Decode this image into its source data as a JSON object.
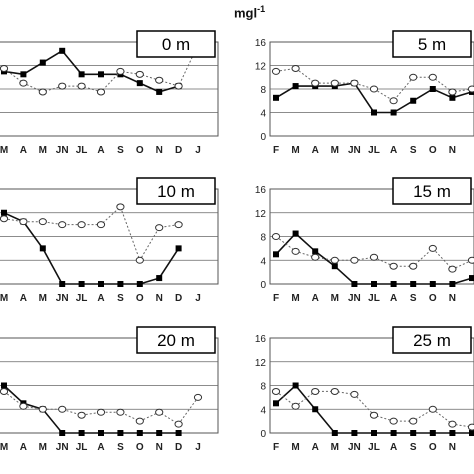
{
  "unit": {
    "base": "mgl",
    "exp": "-1"
  },
  "chart_data": [
    {
      "type": "line",
      "label": "0 m",
      "x": [
        "M",
        "A",
        "M",
        "JN",
        "JL",
        "A",
        "S",
        "O",
        "N",
        "D",
        "J"
      ],
      "yticks": [],
      "series": [
        {
          "marker": "filled-square",
          "line": "solid",
          "values": [
            11,
            10.5,
            12.5,
            14.5,
            10.5,
            10.5,
            10.5,
            9,
            7.5,
            8.5,
            null
          ]
        },
        {
          "marker": "open-circle",
          "line": "dotted",
          "values": [
            11.5,
            9,
            7.5,
            8.5,
            8.5,
            7.5,
            11,
            10.5,
            9.5,
            8.5,
            15.5
          ]
        }
      ]
    },
    {
      "type": "line",
      "label": "5 m",
      "x": [
        "F",
        "M",
        "A",
        "M",
        "JN",
        "JL",
        "A",
        "S",
        "O",
        "N",
        ""
      ],
      "yticks": [
        "16",
        "12",
        "8",
        "4",
        "0"
      ],
      "series": [
        {
          "marker": "filled-square",
          "line": "solid",
          "values": [
            6.5,
            8.5,
            8.5,
            8.5,
            9,
            4,
            4,
            6,
            8,
            6.5,
            7.5
          ]
        },
        {
          "marker": "open-circle",
          "line": "dotted",
          "values": [
            11,
            11.5,
            9,
            9,
            9,
            8,
            6,
            10,
            10,
            7.5,
            8
          ]
        }
      ]
    },
    {
      "type": "line",
      "label": "10 m",
      "x": [
        "M",
        "A",
        "M",
        "JN",
        "JL",
        "A",
        "S",
        "O",
        "N",
        "D",
        "J"
      ],
      "yticks": [],
      "series": [
        {
          "marker": "filled-square",
          "line": "solid",
          "values": [
            12,
            10.5,
            6,
            0,
            0,
            0,
            0,
            0,
            1,
            6,
            null
          ]
        },
        {
          "marker": "open-circle",
          "line": "dotted",
          "values": [
            11,
            10.5,
            10.5,
            10,
            10,
            10,
            13,
            4,
            9.5,
            10,
            null
          ]
        }
      ]
    },
    {
      "type": "line",
      "label": "15 m",
      "x": [
        "F",
        "M",
        "A",
        "M",
        "JN",
        "JL",
        "A",
        "S",
        "O",
        "N",
        ""
      ],
      "yticks": [
        "16",
        "12",
        "8",
        "4",
        "0"
      ],
      "series": [
        {
          "marker": "filled-square",
          "line": "solid",
          "values": [
            5,
            8.5,
            5.5,
            3,
            0,
            0,
            0,
            0,
            0,
            0,
            1
          ]
        },
        {
          "marker": "open-circle",
          "line": "dotted",
          "values": [
            8,
            5.5,
            4.5,
            4,
            4,
            4.5,
            3,
            3,
            6,
            2.5,
            4
          ]
        }
      ]
    },
    {
      "type": "line",
      "label": "20 m",
      "x": [
        "M",
        "A",
        "M",
        "JN",
        "JL",
        "A",
        "S",
        "O",
        "N",
        "D",
        "J"
      ],
      "yticks": [],
      "series": [
        {
          "marker": "filled-square",
          "line": "solid",
          "values": [
            8,
            5,
            4,
            0,
            0,
            0,
            0,
            0,
            0,
            0,
            null
          ]
        },
        {
          "marker": "open-circle",
          "line": "dotted",
          "values": [
            7,
            4.5,
            4,
            4,
            3,
            3.5,
            3.5,
            2,
            3.5,
            1.5,
            6
          ]
        }
      ]
    },
    {
      "type": "line",
      "label": "25 m",
      "x": [
        "F",
        "M",
        "A",
        "M",
        "JN",
        "JL",
        "A",
        "S",
        "O",
        "N",
        ""
      ],
      "yticks": [
        "16",
        "12",
        "8",
        "4",
        "0"
      ],
      "series": [
        {
          "marker": "filled-square",
          "line": "solid",
          "values": [
            5,
            8,
            4,
            0,
            0,
            0,
            0,
            0,
            0,
            0,
            0
          ]
        },
        {
          "marker": "open-circle",
          "line": "dotted",
          "values": [
            7,
            4.5,
            7,
            7,
            6.5,
            3,
            2,
            2,
            4,
            1.5,
            1
          ]
        }
      ]
    }
  ]
}
